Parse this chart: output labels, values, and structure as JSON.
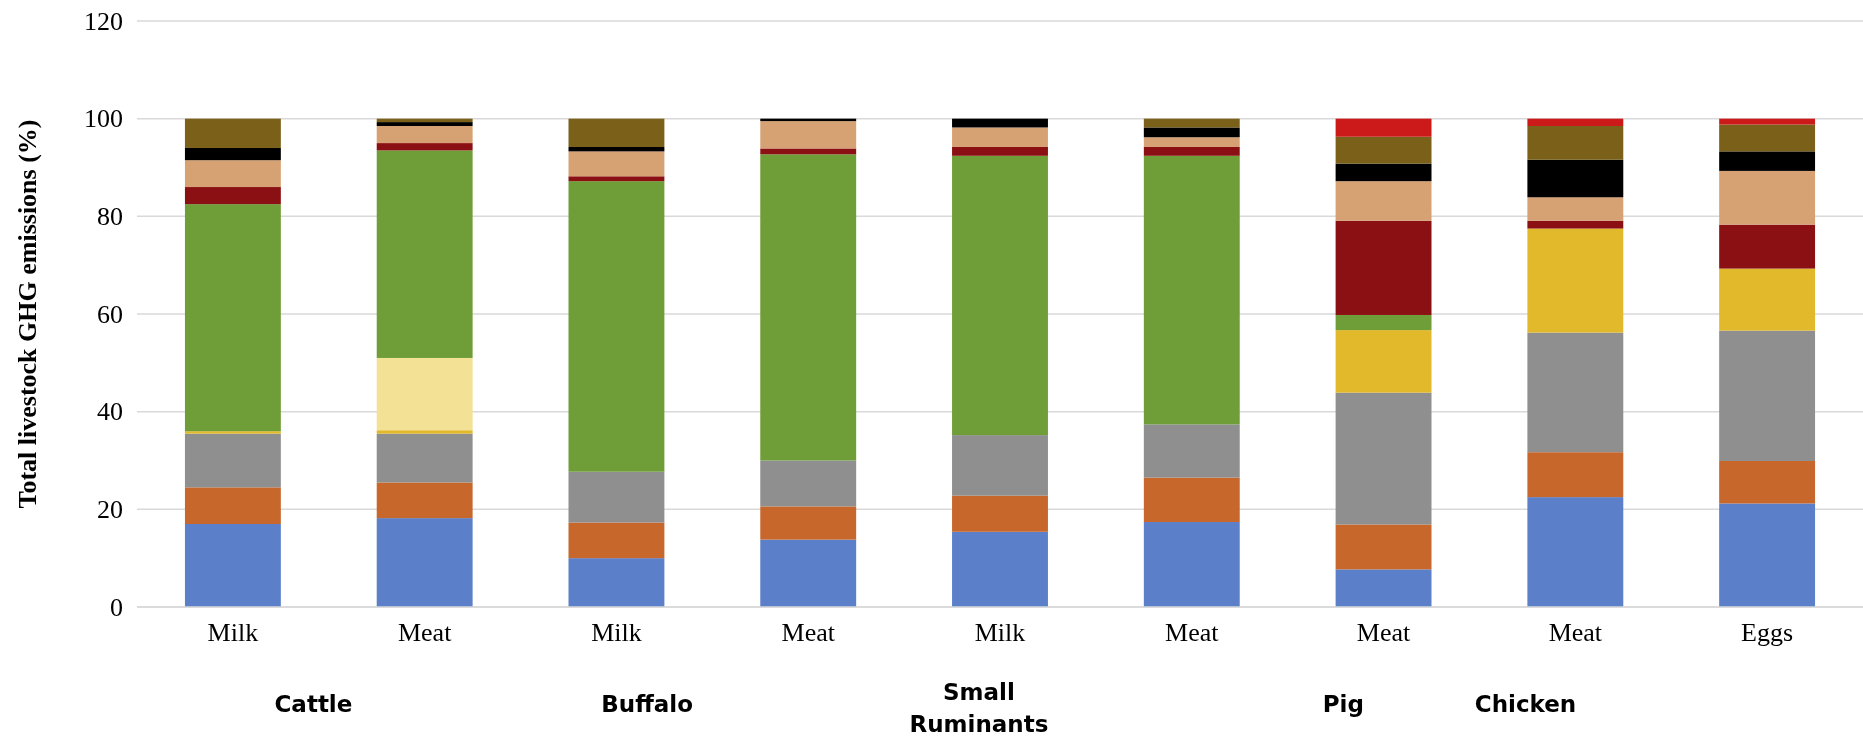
{
  "chart_data": {
    "type": "bar",
    "stacked": true,
    "ylabel": "Total livestock GHG emissions (%)",
    "categories": [
      "Milk",
      "Meat",
      "Milk",
      "Meat",
      "Milk",
      "Meat",
      "Meat",
      "Meat",
      "Eggs"
    ],
    "ylim": [
      0,
      120
    ],
    "yticks": [
      0,
      20,
      40,
      60,
      80,
      100,
      120
    ],
    "grid": "y",
    "annotations": [
      "Cattle",
      "Buffalo",
      "Small Ruminants",
      "Pig",
      "Chicken"
    ],
    "series": [
      {
        "color": "#5b7fc9",
        "values": [
          17,
          18.2,
          10,
          13.8,
          15.4,
          17.4,
          7.7,
          22.5,
          21.2
        ]
      },
      {
        "color": "#c8672b",
        "values": [
          7.5,
          7.3,
          7.3,
          6.8,
          7.4,
          9.1,
          9.2,
          9.2,
          8.7
        ]
      },
      {
        "color": "#8f8f8f",
        "values": [
          11,
          10,
          10.4,
          9.4,
          12.4,
          10.9,
          27,
          24.5,
          26.7
        ]
      },
      {
        "color": "#e2b92b",
        "values": [
          0.5,
          0.7,
          0,
          0,
          0,
          0,
          12.8,
          21.3,
          12.7
        ]
      },
      {
        "color": "#f3e196",
        "values": [
          0,
          14.8,
          0,
          0,
          0,
          0,
          0,
          0,
          0
        ]
      },
      {
        "color": "#6f9e38",
        "values": [
          46.5,
          42.5,
          59.5,
          62.7,
          57.2,
          55,
          3.1,
          0,
          0
        ]
      },
      {
        "color": "#8b1014",
        "values": [
          3.5,
          1.5,
          1,
          1.2,
          1.8,
          1.8,
          19.3,
          1.6,
          9
        ]
      },
      {
        "color": "#d7a273",
        "values": [
          5.5,
          3.5,
          5.1,
          5.6,
          4,
          2,
          8.1,
          4.8,
          11
        ]
      },
      {
        "color": "#000000",
        "values": [
          2.5,
          0.8,
          0.9,
          0.5,
          1.8,
          2,
          3.6,
          7.7,
          4
        ]
      },
      {
        "color": "#7a6018",
        "values": [
          6,
          0.7,
          5.8,
          0,
          0,
          1.8,
          5.5,
          6.9,
          5.5
        ]
      },
      {
        "color": "#cc1a1a",
        "values": [
          0,
          0,
          0,
          0,
          0,
          0,
          3.7,
          1.5,
          1.2
        ]
      }
    ]
  }
}
